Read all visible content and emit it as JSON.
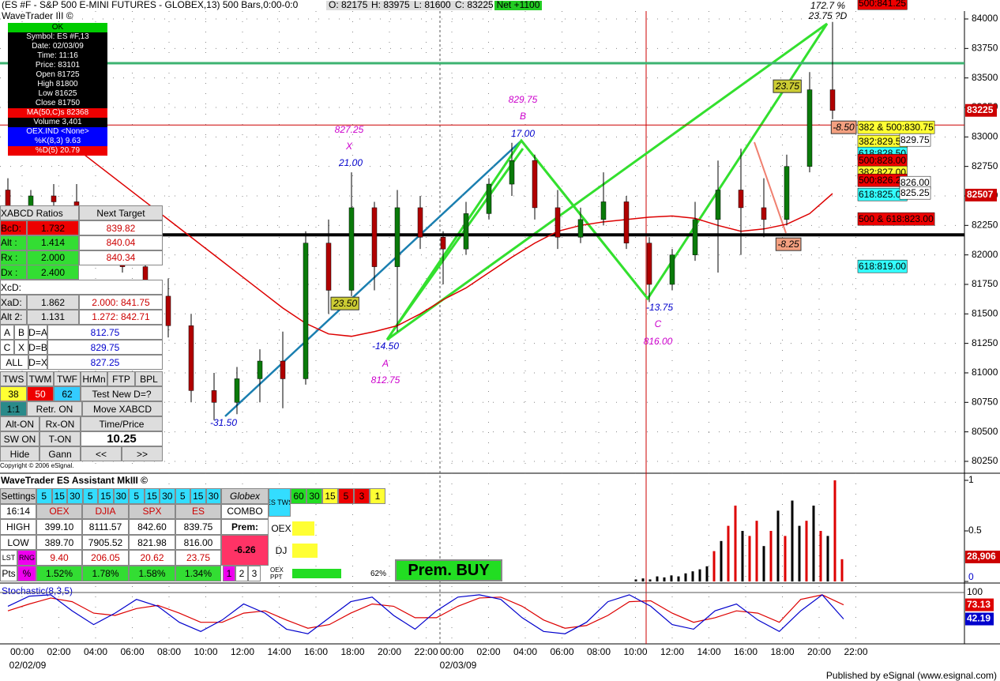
{
  "header": {
    "title": "(ES #F - S&P 500 E-MINI FUTURES - GLOBEX,13) 500 Bars,0:00-0:0",
    "open": "O: 82175",
    "high": "H: 83975",
    "low": "L: 81600",
    "close": "C: 83225",
    "net": "Net +1100",
    "study": "WaveTrader III ©"
  },
  "info_box": [
    "OK",
    "Symbol: ES #F,13",
    "Date: 02/03/09",
    "Time: 11:16",
    "Price: 83101",
    "Open 81725",
    "High 81800",
    "Low 81625",
    "Close 81750",
    "MA(50,C)s 82368",
    "Volume 3,401",
    "OEX.IND <None>",
    "%K(8,3) 9.63",
    "%D(5) 20.79"
  ],
  "xabcd": {
    "title": "XABCD Ratios",
    "next": "Next Target",
    "rows": [
      [
        "BcD:",
        "1.732",
        "839.82"
      ],
      [
        "Alt :",
        "1.414",
        "840.04"
      ],
      [
        "Rx  :",
        "2.000",
        "840.34"
      ],
      [
        "Dx  :",
        "2.400"
      ],
      [
        "XcD:"
      ],
      [
        "XaD:",
        "1.862",
        "2.000: 841.75"
      ],
      [
        "Alt 2:",
        "1.131",
        "1.272: 842.71"
      ]
    ],
    "targets": [
      [
        "A",
        "B",
        "D=A",
        "812.75"
      ],
      [
        "C",
        "X",
        "D=B",
        "829.75"
      ],
      [
        "ALL",
        "D=X",
        "827.25"
      ]
    ],
    "buttons": [
      [
        "TWS",
        "TWM",
        "TWF",
        "HrMn",
        "FTP",
        "BPL"
      ],
      [
        "38",
        "50",
        "62",
        "Test New D=?"
      ],
      [
        "1:1",
        "Retr. ON",
        "Move XABCD"
      ],
      [
        "Alt-ON",
        "Rx-ON",
        "Time/Price"
      ],
      [
        "SW ON",
        "T-ON",
        "10.25"
      ],
      [
        "Hide",
        "Gann",
        "<<",
        ">>"
      ]
    ],
    "copyright": "Copyright © 2006 eSignal."
  },
  "price_chart": {
    "ylim": [
      80156,
      84067
    ],
    "yticks": [
      84000,
      83750,
      83500,
      83250,
      83000,
      82750,
      82500,
      82250,
      82000,
      81750,
      81500,
      81250,
      81000,
      80750,
      80500,
      80250
    ],
    "xticks": [
      "00:00",
      "02:00",
      "04:00",
      "06:00",
      "08:00",
      "10:00",
      "12:00",
      "14:00",
      "16:00",
      "18:00",
      "20:00",
      "22:00",
      "00:00",
      "02:00",
      "04:00",
      "06:00",
      "08:00",
      "10:00",
      "12:00",
      "14:00",
      "16:00",
      "18:00",
      "20:00",
      "22:00"
    ],
    "dates": [
      "02/02/09",
      "02/03/09"
    ],
    "candles": [
      [
        82550,
        82650,
        82300,
        82400
      ],
      [
        82400,
        82550,
        82250,
        82500
      ],
      [
        82500,
        82600,
        82350,
        82450
      ],
      [
        82450,
        82600,
        82200,
        82300
      ],
      [
        82300,
        82400,
        81950,
        82000
      ],
      [
        82000,
        82150,
        81850,
        81900
      ],
      [
        81900,
        82100,
        81600,
        81650
      ],
      [
        81650,
        81800,
        81300,
        81400
      ],
      [
        81400,
        81500,
        80750,
        80850
      ],
      [
        80850,
        81000,
        80600,
        80750
      ],
      [
        80750,
        81050,
        80650,
        80950
      ],
      [
        80950,
        81200,
        80750,
        81100
      ],
      [
        81100,
        81350,
        80700,
        80950
      ],
      [
        80950,
        82200,
        80900,
        82100
      ],
      [
        82100,
        82300,
        81500,
        81700
      ],
      [
        81700,
        82700,
        81650,
        82400
      ],
      [
        82400,
        82450,
        81700,
        81900
      ],
      [
        81900,
        82550,
        81350,
        82400
      ],
      [
        82400,
        82500,
        82050,
        82150
      ],
      [
        82150,
        82200,
        81750,
        82050
      ],
      [
        82050,
        82450,
        82000,
        82350
      ],
      [
        82350,
        82650,
        82300,
        82600
      ],
      [
        82600,
        82950,
        82500,
        82800
      ],
      [
        82800,
        82850,
        82300,
        82400
      ],
      [
        82400,
        82550,
        82050,
        82150
      ],
      [
        82150,
        82400,
        82100,
        82300
      ],
      [
        82300,
        82700,
        82250,
        82450
      ],
      [
        82450,
        82500,
        82050,
        82100
      ],
      [
        82100,
        82150,
        81600,
        81750
      ],
      [
        81750,
        82050,
        81700,
        82000
      ],
      [
        82000,
        82450,
        81950,
        82300
      ],
      [
        82300,
        82800,
        81850,
        82550
      ],
      [
        82550,
        82900,
        82000,
        82400
      ],
      [
        82400,
        82650,
        82150,
        82300
      ],
      [
        82300,
        82850,
        82250,
        82750
      ],
      [
        82750,
        83550,
        82700,
        83400
      ],
      [
        83400,
        83975,
        83150,
        83225
      ]
    ],
    "ma": [
      83300,
      83200,
      83050,
      82900,
      82750,
      82600,
      82450,
      82300,
      82150,
      82000,
      81850,
      81700,
      81550,
      81420,
      81330,
      81310,
      81350,
      81400,
      81500,
      81620,
      81720,
      81850,
      81980,
      82100,
      82200,
      82250,
      82280,
      82300,
      82320,
      82330,
      82310,
      82250,
      82200,
      82220,
      82260,
      82350,
      82520
    ],
    "support": 82170,
    "resistance": 83625,
    "crosshair_price": 83101,
    "last_price": 83225,
    "ma_last": 82507,
    "annotations": [
      "827.25",
      "X",
      "21.00",
      "829.75",
      "B",
      "17.00",
      "23.50",
      "-14.50",
      "A",
      "812.75",
      "-31.50",
      "-13.75",
      "C",
      "816.00",
      "23.75",
      "172.7 %",
      "23.75 ?D",
      "-8.50",
      "-8.25"
    ],
    "levels": [
      "500:841.25",
      "382 & 500:830.75",
      "382:829.50",
      "829.75",
      "618:828.50",
      "500:828.00",
      "382:827.00",
      "500:826.25",
      "826.00",
      "618:825.00",
      "825.25",
      "500 & 618:823.00",
      "618:819.00"
    ]
  },
  "volume": {
    "ylim": [
      0,
      1
    ],
    "yticks": [
      1,
      0.5,
      0
    ],
    "values": [
      0.02,
      0.03,
      0.02,
      0.05,
      0.04,
      0.06,
      0.05,
      0.08,
      0.1,
      0.12,
      0.15,
      0.3,
      0.4,
      0.55,
      0.75,
      0.5,
      0.45,
      0.6,
      0.35,
      0.5,
      0.7,
      0.45,
      0.8,
      0.55,
      0.6,
      0.75,
      0.5,
      0.45,
      1.0,
      0.22
    ],
    "colors": [
      "#000",
      "#000",
      "#000",
      "#000",
      "#000",
      "#000",
      "#000",
      "#000",
      "#000",
      "#000",
      "#000",
      "#d00",
      "#000",
      "#d00",
      "#d00",
      "#000",
      "#d00",
      "#d00",
      "#000",
      "#d00",
      "#000",
      "#d00",
      "#000",
      "#000",
      "#d00",
      "#000",
      "#d00",
      "#000",
      "#d00",
      "#d00"
    ],
    "last": "28,906"
  },
  "stochastic": {
    "title": "Stochastic(8,3,5)",
    "ylim": [
      0,
      100
    ],
    "yticks": [
      100
    ],
    "k": [
      70,
      92,
      95,
      60,
      30,
      55,
      85,
      70,
      35,
      15,
      40,
      75,
      55,
      20,
      10,
      45,
      80,
      90,
      50,
      20,
      60,
      90,
      95,
      85,
      45,
      15,
      10,
      35,
      80,
      95,
      70,
      30,
      20,
      60,
      75,
      40,
      15,
      60,
      95,
      42.19
    ],
    "d": [
      60,
      75,
      88,
      80,
      55,
      50,
      65,
      72,
      55,
      35,
      35,
      55,
      60,
      40,
      22,
      30,
      55,
      75,
      70,
      45,
      45,
      70,
      88,
      90,
      70,
      40,
      22,
      28,
      50,
      80,
      82,
      55,
      35,
      45,
      60,
      55,
      35,
      85,
      95,
      73.13
    ]
  },
  "assistant": {
    "title": "WaveTrader ES Assistant MkIII ©",
    "rows": [
      [
        "Settings",
        "5",
        "15",
        "30",
        "5",
        "15",
        "30",
        "5",
        "15",
        "30",
        "5",
        "15",
        "30",
        "Globex",
        "ES TWS",
        "60",
        "30",
        "15",
        "5",
        "3",
        "1"
      ],
      [
        "16:14",
        "OEX",
        "DJIA",
        "SPX",
        "ES",
        "COMBO"
      ],
      [
        "HIGH",
        "399.10",
        "8111.57",
        "842.60",
        "839.75",
        "Prem:"
      ],
      [
        "LOW",
        "389.70",
        "7905.52",
        "821.98",
        "816.00",
        "-6.26"
      ],
      [
        "LST",
        "RNG",
        "9.40",
        "206.05",
        "20.62",
        "23.75"
      ],
      [
        "Pts",
        "%",
        "1.52%",
        "1.78%",
        "1.58%",
        "1.34%",
        "1",
        "2",
        "3"
      ]
    ],
    "side": [
      "OEX",
      "DJ",
      "OEX PPT",
      "62%"
    ],
    "signal": "Prem. BUY"
  },
  "footer": "Published by eSignal (www.esignal.com)"
}
